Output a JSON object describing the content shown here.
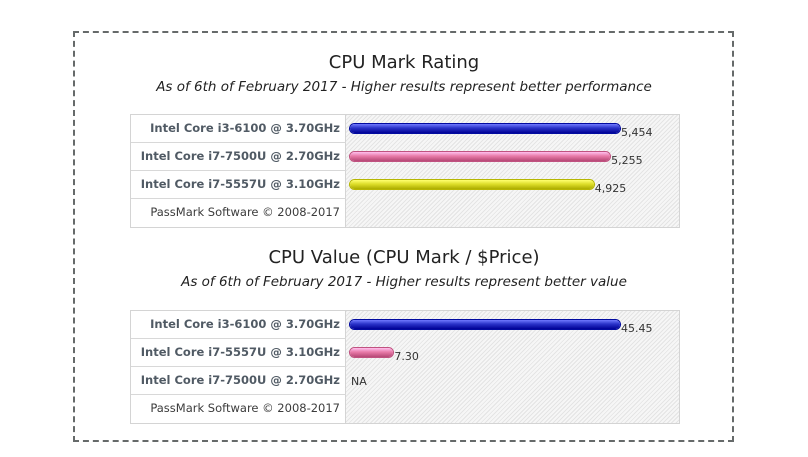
{
  "chart_data": [
    {
      "type": "bar",
      "title": "CPU Mark Rating",
      "subtitle": "As of 6th of February 2017 - Higher results represent better performance",
      "categories": [
        "Intel Core i3-6100 @ 3.70GHz",
        "Intel Core i7-7500U @ 2.70GHz",
        "Intel Core i7-5557U @ 3.10GHz"
      ],
      "values": [
        5454,
        5255,
        4925
      ],
      "value_labels": [
        "5,454",
        "5,255",
        "4,925"
      ],
      "colors": [
        "#2a33c8",
        "#e87aa8",
        "#dede2a"
      ],
      "max": 5454,
      "footer": "PassMark Software © 2008-2017"
    },
    {
      "type": "bar",
      "title": "CPU Value (CPU Mark / $Price)",
      "subtitle": "As of 6th of February 2017 - Higher results represent better value",
      "categories": [
        "Intel Core i3-6100 @ 3.70GHz",
        "Intel Core i7-5557U @ 3.10GHz",
        "Intel Core i7-7500U @ 2.70GHz"
      ],
      "values": [
        45.45,
        7.3,
        null
      ],
      "value_labels": [
        "45.45",
        "7.30",
        "NA"
      ],
      "colors": [
        "#2a33c8",
        "#e87aa8",
        "#dede2a"
      ],
      "max": 45.45,
      "footer": "PassMark Software © 2008-2017"
    }
  ]
}
